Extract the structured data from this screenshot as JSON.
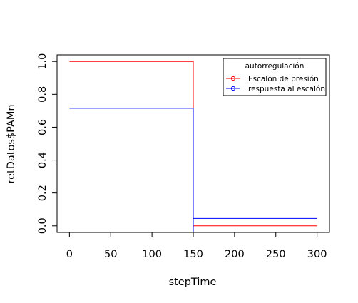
{
  "chart_data": {
    "type": "line",
    "title": "",
    "xlabel": "stepTime",
    "ylabel": "retDatos$PAMn",
    "xlim": [
      -15,
      315
    ],
    "ylim": [
      -0.04,
      1.04
    ],
    "xticks": [
      0,
      50,
      100,
      150,
      200,
      250,
      300
    ],
    "yticks": [
      0.0,
      0.2,
      0.4,
      0.6,
      0.8,
      1.0
    ],
    "xtick_labels": [
      "0",
      "50",
      "100",
      "150",
      "200",
      "250",
      "300"
    ],
    "ytick_labels": [
      "0.0",
      "0.2",
      "0.4",
      "0.6",
      "0.8",
      "1.0"
    ],
    "grid": false,
    "legend": {
      "placement": "top-right",
      "title": "autorregulación"
    },
    "series": [
      {
        "name": "Escalon de presión",
        "color": "#ff0000",
        "step": true,
        "x": [
          0,
          150,
          150,
          300
        ],
        "y": [
          1.0,
          1.0,
          0.0,
          0.0
        ]
      },
      {
        "name": "respuesta al escalón",
        "color": "#0000ff",
        "step": true,
        "x": [
          0,
          150,
          150,
          150,
          300
        ],
        "y": [
          0.715,
          0.715,
          -0.04,
          0.045,
          0.045
        ]
      }
    ]
  }
}
